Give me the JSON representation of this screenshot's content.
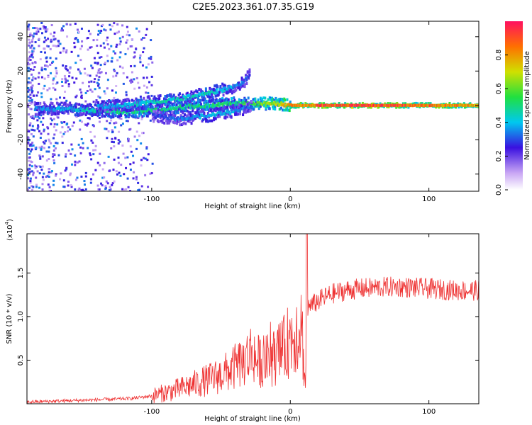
{
  "title": "C2E5.2023.361.07.35.G19",
  "chart_data": [
    {
      "type": "heatmap",
      "xlabel": "Height of straight line (km)",
      "ylabel": "Frequency (Hz)",
      "xlim": [
        -190,
        136
      ],
      "ylim": [
        -50,
        49
      ],
      "xticks": [
        -100,
        0,
        100
      ],
      "xtick_labels": [
        "-100",
        "0",
        "100"
      ],
      "yticks": [
        -40,
        -20,
        0,
        20,
        40
      ],
      "ytick_labels": [
        "-40",
        "-20",
        "0",
        "20",
        "40"
      ],
      "colorbar": {
        "label": "Normalized spectral amplitude",
        "range": [
          0,
          1
        ],
        "ticks": [
          0.0,
          0.2,
          0.4,
          0.6,
          0.8
        ],
        "tick_labels": [
          "0.0",
          "0.2",
          "0.4",
          "0.6",
          "0.8"
        ]
      },
      "traces": [
        {
          "x": [
            -185,
            -160,
            -140,
            -120,
            -100,
            -80,
            -60,
            -40,
            -30,
            -20,
            -10,
            0,
            20,
            50,
            80,
            110,
            136
          ],
          "frequency": [
            -2,
            -2,
            -3,
            -4,
            -3,
            -1,
            0,
            1,
            1,
            1,
            1,
            0,
            0,
            0,
            0,
            0,
            0
          ],
          "amplitude": [
            0.35,
            0.4,
            0.45,
            0.5,
            0.5,
            0.5,
            0.5,
            0.55,
            0.55,
            0.65,
            0.7,
            0.8,
            0.9,
            0.95,
            0.9,
            0.85,
            0.8
          ]
        },
        {
          "x": [
            -140,
            -120,
            -100,
            -80,
            -60,
            -45,
            -35,
            -30
          ],
          "frequency": [
            -1,
            0,
            2,
            4,
            7,
            10,
            13,
            18
          ],
          "amplitude": [
            0.35,
            0.4,
            0.45,
            0.45,
            0.45,
            0.4,
            0.35,
            0.3
          ]
        },
        {
          "x": [
            -100,
            -80,
            -60,
            -45,
            -35,
            -28
          ],
          "frequency": [
            -6,
            -8,
            -6,
            -4,
            -2,
            -1
          ],
          "amplitude": [
            0.3,
            0.35,
            0.4,
            0.4,
            0.35,
            0.3
          ]
        }
      ]
    },
    {
      "type": "line",
      "xlabel": "Height of straight line (km)",
      "ylabel": "SNR (10 * v/v)",
      "y_multiplier": "(x10",
      "y_multiplier_exponent": "4",
      "y_multiplier_close": ")",
      "xlim": [
        -190,
        136
      ],
      "ylim": [
        0,
        1.95
      ],
      "xticks": [
        -100,
        0,
        100
      ],
      "xtick_labels": [
        "-100",
        "0",
        "100"
      ],
      "yticks": [
        0.5,
        1.0,
        1.5
      ],
      "ytick_labels": [
        "0.5",
        "1.0",
        "1.5"
      ],
      "color": "#ee3030",
      "series": [
        {
          "x": [
            -190,
            -170,
            -150,
            -130,
            -115,
            -100,
            -90,
            -80,
            -70,
            -60,
            -50,
            -45,
            -40,
            -35,
            -30,
            -27,
            -25,
            -20,
            -15,
            -10,
            -5,
            0,
            5,
            8,
            10,
            11,
            12,
            13,
            15,
            20,
            25,
            30,
            35,
            40,
            50,
            60,
            70,
            80,
            90,
            100,
            110,
            120,
            136
          ],
          "y": [
            0.02,
            0.03,
            0.04,
            0.05,
            0.06,
            0.09,
            0.13,
            0.17,
            0.22,
            0.27,
            0.33,
            0.37,
            0.42,
            0.47,
            0.55,
            0.62,
            0.5,
            0.48,
            0.5,
            0.55,
            0.62,
            0.75,
            0.85,
            0.95,
            0.4,
            0.2,
            1.05,
            1.1,
            1.12,
            1.18,
            1.22,
            1.26,
            1.28,
            1.3,
            1.32,
            1.33,
            1.34,
            1.34,
            1.33,
            1.32,
            1.31,
            1.3,
            1.3
          ]
        }
      ]
    }
  ]
}
